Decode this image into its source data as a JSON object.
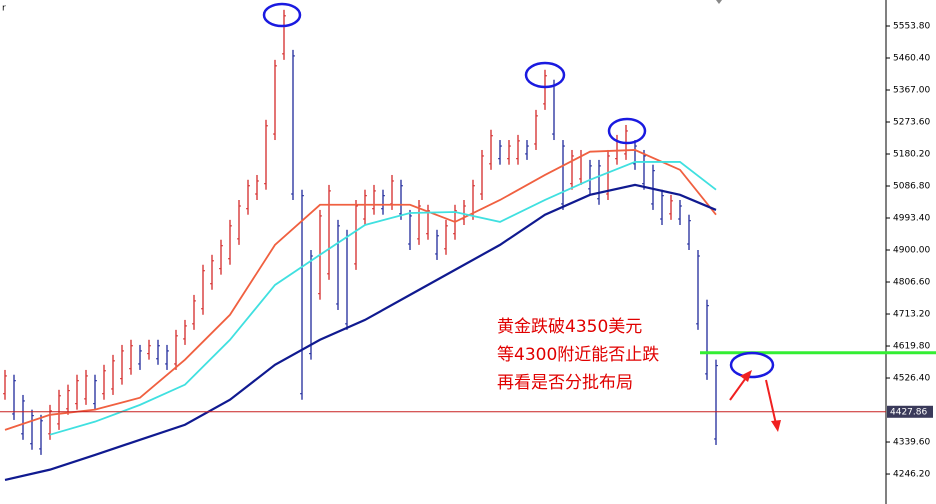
{
  "chart_data": {
    "type": "ohlc",
    "corner_label": "r",
    "ylim": [
      4158.7,
      5629.7
    ],
    "yticks": [
      {
        "value": 5553.8,
        "label": "5553.80"
      },
      {
        "value": 5460.4,
        "label": "5460.40"
      },
      {
        "value": 5367,
        "label": "5367.00"
      },
      {
        "value": 5273.6,
        "label": "5273.60"
      },
      {
        "value": 5180.2,
        "label": "5180.20"
      },
      {
        "value": 5086.8,
        "label": "5086.80"
      },
      {
        "value": 4993.4,
        "label": "4993.40"
      },
      {
        "value": 4900,
        "label": "4900.00"
      },
      {
        "value": 4806.6,
        "label": "4806.60"
      },
      {
        "value": 4713.2,
        "label": "4713.20"
      },
      {
        "value": 4619.8,
        "label": "4619.80"
      },
      {
        "value": 4526.4,
        "label": "4526.40"
      },
      {
        "value": 4339.6,
        "label": "4339.60"
      },
      {
        "value": 4246.2,
        "label": "4246.20"
      }
    ],
    "current_price": {
      "value": 4427.86,
      "label": "4427.86"
    },
    "support_level": 4600,
    "up_color": "#d42a2a",
    "down_color": "#1f2a9c",
    "highs": [
      4550,
      4536,
      4477,
      4434,
      4419,
      4448,
      4492,
      4507,
      4536,
      4550,
      4536,
      4565,
      4594,
      4623,
      4638,
      4623,
      4638,
      4638,
      4623,
      4667,
      4696,
      4769,
      4857,
      4886,
      4930,
      4988,
      5046,
      5105,
      5119,
      5280,
      5455,
      5601,
      5484,
      5076,
      4900,
      5017,
      5090,
      4988,
      4959,
      5046,
      5076,
      5090,
      5076,
      5119,
      5105,
      5017,
      5046,
      5032,
      4959,
      4988,
      5032,
      5046,
      5105,
      5192,
      5251,
      5221,
      5221,
      5236,
      5221,
      5309,
      5426,
      5397,
      5221,
      5192,
      5192,
      5163,
      5163,
      5192,
      5236,
      5265,
      5221,
      5192,
      5149,
      5076,
      5061,
      5046,
      5003,
      4900,
      4755,
      4580
    ],
    "lows": [
      4463,
      4404,
      4346,
      4317,
      4302,
      4346,
      4375,
      4419,
      4434,
      4448,
      4434,
      4463,
      4477,
      4507,
      4536,
      4550,
      4580,
      4565,
      4550,
      4550,
      4623,
      4667,
      4711,
      4784,
      4828,
      4857,
      4915,
      5003,
      5046,
      5076,
      5221,
      5455,
      5046,
      4463,
      4580,
      4755,
      4813,
      4725,
      4667,
      4842,
      4973,
      5003,
      5003,
      5017,
      4988,
      4900,
      4915,
      4930,
      4871,
      4886,
      4930,
      4973,
      4988,
      5046,
      5134,
      5149,
      5149,
      5149,
      5163,
      5192,
      5309,
      5221,
      5017,
      5076,
      5090,
      5061,
      5032,
      5046,
      5149,
      5163,
      5134,
      5076,
      5017,
      4973,
      4988,
      4973,
      4900,
      4667,
      4521,
      4331
    ],
    "series": [
      {
        "color": "#f06040",
        "x": [
          0,
          5,
          10,
          15,
          20,
          25,
          30,
          35,
          40,
          45,
          50,
          55,
          60,
          65,
          70,
          75,
          79
        ],
        "values": [
          4375,
          4419,
          4434,
          4469,
          4580,
          4711,
          4915,
          5032,
          5032,
          5032,
          4982,
          5046,
          5119,
          5187,
          5192,
          5134,
          5003
        ]
      },
      {
        "color": "#40e0e0",
        "x": [
          5,
          10,
          15,
          20,
          25,
          30,
          35,
          40,
          45,
          50,
          55,
          60,
          65,
          70,
          75,
          79
        ],
        "values": [
          4361,
          4399,
          4448,
          4507,
          4638,
          4798,
          4886,
          4973,
          5008,
          5011,
          4982,
          5046,
          5105,
          5157,
          5157,
          5076
        ]
      },
      {
        "color": "#101a90",
        "x": [
          0,
          5,
          10,
          15,
          20,
          25,
          30,
          35,
          40,
          45,
          50,
          55,
          60,
          65,
          70,
          75,
          79
        ],
        "values": [
          4229,
          4259,
          4302,
          4346,
          4390,
          4463,
          4565,
          4638,
          4696,
          4769,
          4842,
          4915,
          5003,
          5061,
          5090,
          5061,
          5017
        ]
      }
    ],
    "annotations": [
      "黄金跌破4350美元",
      "等4300附近能否止跌",
      "再看是否分批布局"
    ]
  }
}
